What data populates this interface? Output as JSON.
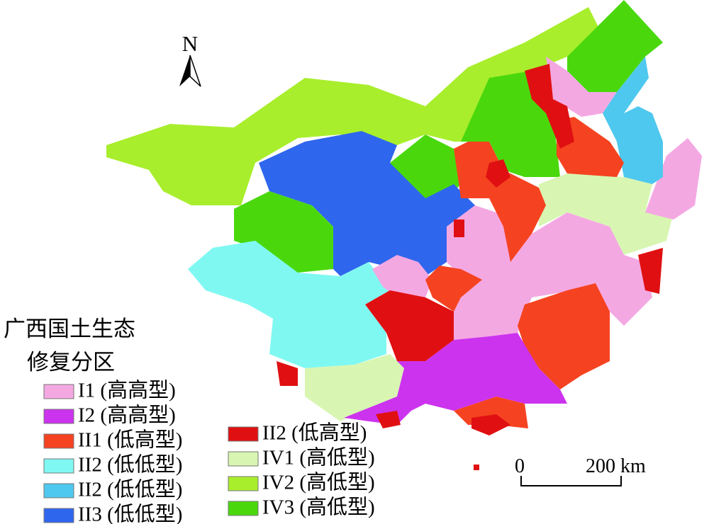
{
  "map": {
    "north": "N",
    "scale_bar": {
      "start": "0",
      "end": "200 km"
    },
    "legend": {
      "title_lines": [
        "广西国土生态",
        "修复分区"
      ],
      "items": [
        {
          "label": "I1 (高高型)",
          "color": "#f4a8e2"
        },
        {
          "label": "I2 (高高型)",
          "color": "#cc33ee"
        },
        {
          "label": "II1 (低高型)",
          "color": "#f54321"
        },
        {
          "label": "II2 (低低型)",
          "color": "#80f8f2"
        },
        {
          "label": "II2 (低低型)",
          "color": "#4ec8ee"
        },
        {
          "label": "II3 (低低型)",
          "color": "#2f66ee"
        },
        {
          "label": "II2 (低高型)",
          "color": "#e01012"
        },
        {
          "label": "IV1 (高低型)",
          "color": "#d8f6b2"
        },
        {
          "label": "IV2 (高低型)",
          "color": "#a8ee2c"
        },
        {
          "label": "IV3 (高低型)",
          "color": "#4ad80c"
        }
      ]
    }
  }
}
